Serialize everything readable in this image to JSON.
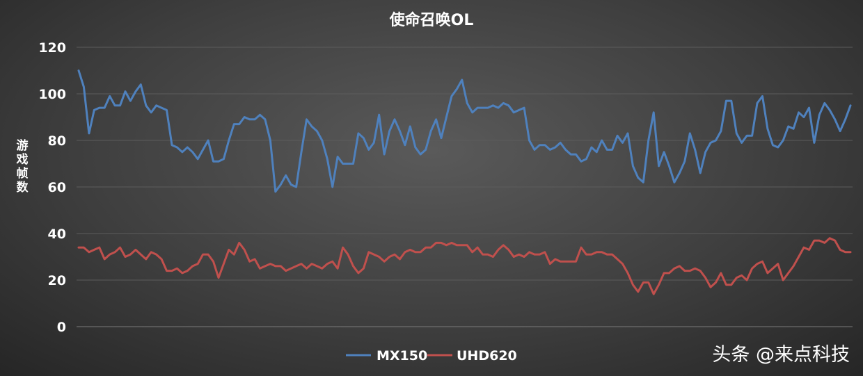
{
  "chart_data": {
    "type": "line",
    "title": "使命召唤OL",
    "xlabel": "",
    "ylabel": "游戏帧数",
    "ylim": [
      0,
      120
    ],
    "yticks": [
      0,
      20,
      40,
      60,
      80,
      100,
      120
    ],
    "grid": true,
    "legend_position": "bottom",
    "series": [
      {
        "name": "MX150",
        "color": "#4f81bd",
        "values": [
          110,
          103,
          83,
          93,
          94,
          94,
          99,
          95,
          95,
          101,
          97,
          101,
          104,
          95,
          92,
          95,
          94,
          93,
          78,
          77,
          75,
          77,
          75,
          72,
          76,
          80,
          71,
          71,
          72,
          80,
          87,
          87,
          90,
          89,
          89,
          91,
          89,
          80,
          58,
          61,
          65,
          61,
          60,
          75,
          89,
          86,
          84,
          80,
          72,
          60,
          73,
          70,
          70,
          70,
          83,
          81,
          76,
          79,
          91,
          74,
          84,
          89,
          84,
          78,
          86,
          77,
          74,
          76,
          84,
          89,
          81,
          90,
          99,
          102,
          106,
          96,
          92,
          94,
          94,
          94,
          95,
          94,
          96,
          95,
          92,
          93,
          94,
          80,
          76,
          78,
          78,
          76,
          77,
          79,
          76,
          74,
          74,
          71,
          72,
          77,
          75,
          80,
          76,
          76,
          82,
          79,
          83,
          69,
          64,
          62,
          80,
          92,
          69,
          75,
          69,
          62,
          66,
          71,
          83,
          76,
          66,
          75,
          79,
          80,
          84,
          97,
          97,
          83,
          79,
          82,
          82,
          96,
          99,
          85,
          78,
          77,
          80,
          86,
          85,
          92,
          90,
          94,
          79,
          91,
          96,
          93,
          89,
          84,
          89,
          95
        ]
      },
      {
        "name": "UHD620",
        "color": "#c0504d",
        "values": [
          34,
          34,
          32,
          33,
          34,
          29,
          31,
          32,
          34,
          30,
          31,
          33,
          31,
          29,
          32,
          31,
          29,
          24,
          24,
          25,
          23,
          24,
          26,
          27,
          31,
          31,
          28,
          21,
          27,
          33,
          31,
          36,
          33,
          28,
          29,
          25,
          26,
          27,
          26,
          26,
          24,
          25,
          26,
          27,
          25,
          27,
          26,
          25,
          27,
          28,
          25,
          34,
          31,
          26,
          23,
          25,
          32,
          31,
          30,
          28,
          30,
          31,
          29,
          32,
          33,
          32,
          32,
          34,
          34,
          36,
          36,
          35,
          36,
          35,
          35,
          35,
          32,
          34,
          31,
          31,
          30,
          33,
          35,
          33,
          30,
          31,
          30,
          32,
          31,
          31,
          32,
          27,
          29,
          28,
          28,
          28,
          28,
          34,
          31,
          31,
          32,
          32,
          31,
          31,
          29,
          27,
          23,
          18,
          15,
          19,
          19,
          14,
          18,
          23,
          23,
          25,
          26,
          24,
          24,
          25,
          24,
          21,
          17,
          19,
          23,
          18,
          18,
          21,
          22,
          20,
          25,
          27,
          28,
          23,
          25,
          27,
          20,
          23,
          26,
          30,
          34,
          33,
          37,
          37,
          36,
          38,
          37,
          33,
          32,
          32
        ]
      }
    ]
  },
  "watermark": "头条 @来点科技"
}
